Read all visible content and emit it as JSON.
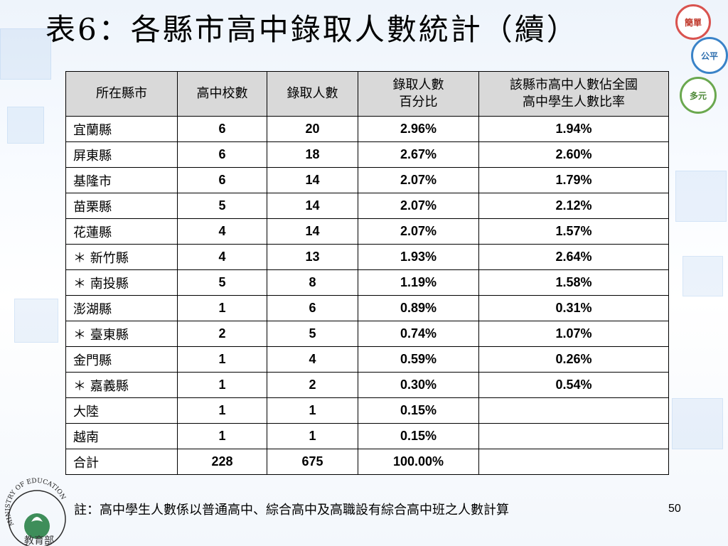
{
  "title": "表6：各縣市高中錄取人數統計（續）",
  "badges": [
    "簡單",
    "公平",
    "多元"
  ],
  "table": {
    "headers": [
      [
        "所在縣市"
      ],
      [
        "高中校數"
      ],
      [
        "錄取人數"
      ],
      [
        "錄取人數",
        "百分比"
      ],
      [
        "該縣市高中人數佔全國",
        "高中學生人數比率"
      ]
    ],
    "rows": [
      [
        "宜蘭縣",
        "6",
        "20",
        "2.96%",
        "1.94%"
      ],
      [
        "屏東縣",
        "6",
        "18",
        "2.67%",
        "2.60%"
      ],
      [
        "基隆市",
        "6",
        "14",
        "2.07%",
        "1.79%"
      ],
      [
        "苗栗縣",
        "5",
        "14",
        "2.07%",
        "2.12%"
      ],
      [
        "花蓮縣",
        "4",
        "14",
        "2.07%",
        "1.57%"
      ],
      [
        "＊ 新竹縣",
        "4",
        "13",
        "1.93%",
        "2.64%"
      ],
      [
        "＊ 南投縣",
        "5",
        "8",
        "1.19%",
        "1.58%"
      ],
      [
        "澎湖縣",
        "1",
        "6",
        "0.89%",
        "0.31%"
      ],
      [
        "＊ 臺東縣",
        "2",
        "5",
        "0.74%",
        "1.07%"
      ],
      [
        "金門縣",
        "1",
        "4",
        "0.59%",
        "0.26%"
      ],
      [
        "＊ 嘉義縣",
        "1",
        "2",
        "0.30%",
        "0.54%"
      ],
      [
        "大陸",
        "1",
        "1",
        "0.15%",
        ""
      ],
      [
        "越南",
        "1",
        "1",
        "0.15%",
        ""
      ],
      [
        "合計",
        "228",
        "675",
        "100.00%",
        ""
      ]
    ]
  },
  "note": "註：高中學生人數係以普通高中、綜合高中及高職設有綜合高中班之人數計算",
  "page_number": "50",
  "logo": {
    "ring_text": "MINISTRY OF EDUCATION",
    "name": "教育部"
  },
  "colors": {
    "header_bg": "#d9d9d9",
    "border": "#000000"
  }
}
